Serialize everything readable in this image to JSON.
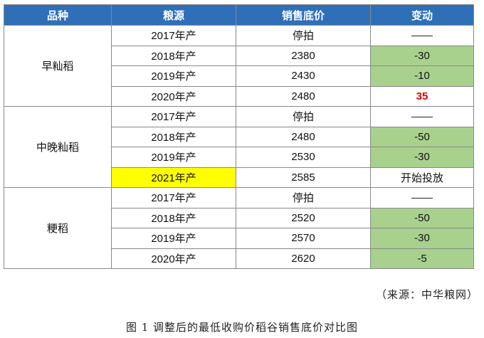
{
  "table": {
    "headers": [
      "品种",
      "粮源",
      "销售底价",
      "变动"
    ],
    "groups": [
      {
        "variety": "早籼稻",
        "rows": [
          {
            "source": "2017年产",
            "price": "停拍",
            "change": "——",
            "style": "dash"
          },
          {
            "source": "2018年产",
            "price": "2380",
            "change": "-30",
            "style": "green"
          },
          {
            "source": "2019年产",
            "price": "2430",
            "change": "-10",
            "style": "green"
          },
          {
            "source": "2020年产",
            "price": "2480",
            "change": "35",
            "style": "red"
          }
        ]
      },
      {
        "variety": "中晚籼稻",
        "rows": [
          {
            "source": "2017年产",
            "price": "停拍",
            "change": "——",
            "style": "dash"
          },
          {
            "source": "2018年产",
            "price": "2480",
            "change": "-50",
            "style": "green"
          },
          {
            "source": "2019年产",
            "price": "2530",
            "change": "-30",
            "style": "green"
          },
          {
            "source": "2021年产",
            "price": "2585",
            "change": "开始投放",
            "style": "note",
            "highlight": true
          }
        ]
      },
      {
        "variety": "粳稻",
        "rows": [
          {
            "source": "2017年产",
            "price": "停拍",
            "change": "——",
            "style": "dash"
          },
          {
            "source": "2018年产",
            "price": "2520",
            "change": "-50",
            "style": "green"
          },
          {
            "source": "2019年产",
            "price": "2570",
            "change": "-30",
            "style": "green"
          },
          {
            "source": "2020年产",
            "price": "2620",
            "change": "-5",
            "style": "green"
          }
        ]
      }
    ]
  },
  "source_note": "（来源：中华粮网）",
  "caption": "图 1 调整后的最低收购价稻谷销售底价对比图",
  "colors": {
    "header": "#2f6fb8",
    "positive_green": "#a9d18e",
    "highlight_yellow": "#ffff00",
    "increase_red": "#e00000"
  }
}
